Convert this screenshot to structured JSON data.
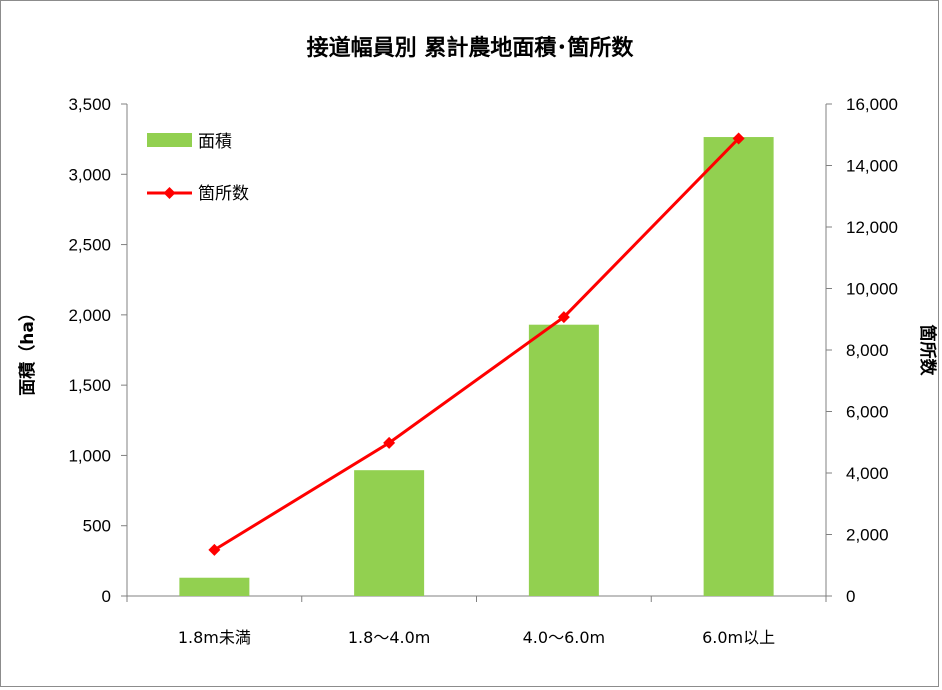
{
  "chart_data": {
    "type": "bar",
    "title": "接道幅員別 累計農地面積･箇所数",
    "categories": [
      "1.8m未満",
      "1.8～4.0m",
      "4.0～6.0m",
      "6.0m以上"
    ],
    "series": [
      {
        "name": "面積",
        "type": "bar",
        "axis": "left",
        "color": "#92d050",
        "values": [
          130,
          895,
          1930,
          3265
        ]
      },
      {
        "name": "箇所数",
        "type": "line",
        "axis": "right",
        "color": "#ff0000",
        "values": [
          1500,
          4980,
          9070,
          14880
        ]
      }
    ],
    "y_left": {
      "label": "面積（ha）",
      "ylim": [
        0,
        3500
      ],
      "ticks": [
        "0",
        "500",
        "1,000",
        "1,500",
        "2,000",
        "2,500",
        "3,000",
        "3,500"
      ]
    },
    "y_right": {
      "label": "箇所数",
      "ylim": [
        0,
        16000
      ],
      "ticks": [
        "0",
        "2,000",
        "4,000",
        "6,000",
        "8,000",
        "10,000",
        "12,000",
        "14,000",
        "16,000"
      ]
    },
    "legend_position": "top-left",
    "grid": false
  }
}
